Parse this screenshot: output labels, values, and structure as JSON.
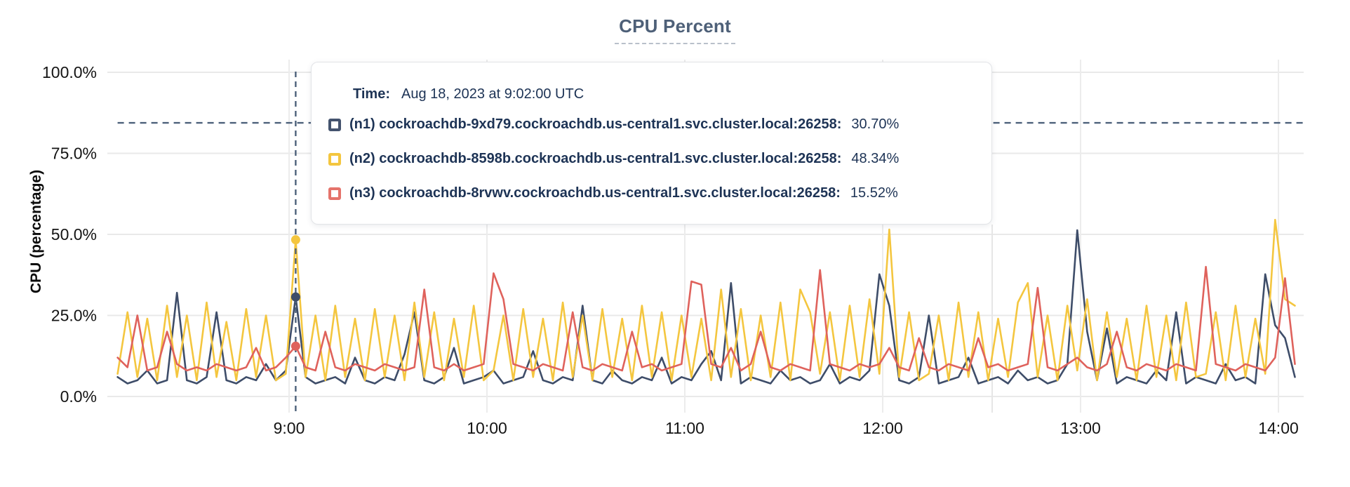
{
  "title": "CPU Percent",
  "tooltip": {
    "time_label": "Time:",
    "time_value": "Aug 18, 2023 at 9:02:00 UTC",
    "rows": [
      {
        "label": "(n1) cockroachdb-9xd79.cockroachdb.us-central1.svc.cluster.local:26258:",
        "value": "30.70%",
        "color": "#44536e"
      },
      {
        "label": "(n2) cockroachdb-8598b.cockroachdb.us-central1.svc.cluster.local:26258:",
        "value": "48.34%",
        "color": "#f4c63f"
      },
      {
        "label": "(n3) cockroachdb-8rvwv.cockroachdb.us-central1.svc.cluster.local:26258:",
        "value": "15.52%",
        "color": "#e5736b"
      }
    ]
  },
  "colors": {
    "grid": "#e9e9e9",
    "crosshair": "#4d617a",
    "axis_text": "#141414",
    "title_text": "#4e6078",
    "tooltip_text": "#1d3355"
  },
  "chart_data": {
    "type": "line",
    "title": "CPU Percent",
    "xlabel": "",
    "ylabel": "CPU (percentage)",
    "ylim": [
      0,
      100
    ],
    "yticks": [
      0,
      25,
      50,
      75,
      100
    ],
    "ytick_labels": [
      "0.0%",
      "25.0%",
      "50.0%",
      "75.0%",
      "100.0%"
    ],
    "xticks_minutes": [
      540,
      600,
      660,
      720,
      780,
      840
    ],
    "xtick_labels": [
      "9:00",
      "10:00",
      "11:00",
      "12:00",
      "13:00",
      "14:00"
    ],
    "x_start_minute": 488,
    "x_step_minutes": 3,
    "grid": true,
    "legend_position": "tooltip",
    "hover": {
      "minute": 542,
      "time": "Aug 18, 2023 at 9:02:00 UTC",
      "cursor_y_percent": 84.4,
      "values": [
        30.7,
        48.34,
        15.52
      ]
    },
    "series": [
      {
        "name": "(n1) cockroachdb-9xd79.cockroachdb.us-central1.svc.cluster.local:26258",
        "color": "#3e4d69",
        "values": [
          6,
          4,
          5,
          8,
          4,
          5,
          32,
          5,
          4,
          6,
          26,
          5,
          4,
          6,
          5,
          10,
          5,
          8,
          30.7,
          6,
          4,
          5,
          6,
          4,
          12,
          5,
          4,
          6,
          5,
          13,
          26,
          5,
          4,
          6,
          15,
          4,
          5,
          6,
          8,
          4,
          5,
          6,
          14,
          5,
          4,
          6,
          5,
          28,
          5,
          4,
          8,
          5,
          4,
          6,
          5,
          12,
          4,
          6,
          5,
          10,
          14,
          5,
          35,
          4,
          6,
          5,
          4,
          8,
          5,
          6,
          4,
          5,
          10,
          4,
          6,
          5,
          8,
          37.7,
          28,
          5,
          4,
          6,
          25,
          4,
          5,
          6,
          12,
          4,
          5,
          6,
          4,
          8,
          5,
          6,
          4,
          5,
          10,
          51.3,
          20,
          5,
          21,
          4,
          6,
          5,
          4,
          8,
          5,
          26,
          4,
          6,
          5,
          4,
          10,
          5,
          6,
          4,
          37.7,
          22,
          18,
          6
        ]
      },
      {
        "name": "(n2) cockroachdb-8598b.cockroachdb.us-central1.svc.cluster.local:26258",
        "color": "#f4c63f",
        "values": [
          7,
          26,
          6,
          24,
          5,
          28,
          6,
          25,
          5,
          29,
          6,
          23,
          5,
          27,
          6,
          25,
          5,
          7,
          48.34,
          6,
          25,
          5,
          28,
          6,
          24,
          5,
          27,
          6,
          25,
          5,
          29,
          6,
          26,
          5,
          24,
          6,
          28,
          5,
          8,
          25,
          5,
          27,
          6,
          24,
          5,
          29,
          6,
          25,
          5,
          27,
          6,
          24,
          5,
          28,
          6,
          26,
          5,
          25,
          6,
          24,
          5,
          33,
          6,
          27,
          5,
          25,
          6,
          29,
          5,
          33,
          26,
          7,
          26,
          5,
          28,
          6,
          30,
          7,
          51.5,
          6,
          26,
          5,
          7,
          25,
          5,
          29,
          6,
          26,
          5,
          24,
          6,
          29,
          35,
          6,
          25,
          5,
          28,
          8,
          30,
          5,
          26,
          6,
          24,
          5,
          28,
          6,
          25,
          5,
          29,
          6,
          7,
          26,
          5,
          28,
          6,
          24,
          7,
          54.5,
          30,
          28
        ]
      },
      {
        "name": "(n3) cockroachdb-8rvwv.cockroachdb.us-central1.svc.cluster.local:26258",
        "color": "#df625c",
        "values": [
          12,
          9,
          25,
          8,
          9,
          20,
          10,
          8,
          9,
          8,
          10,
          9,
          8,
          9,
          15,
          8,
          9,
          12,
          15.52,
          9,
          8,
          20,
          9,
          8,
          10,
          9,
          8,
          10,
          9,
          8,
          9,
          33,
          9,
          8,
          10,
          8,
          9,
          10,
          38,
          30,
          10,
          9,
          8,
          10,
          9,
          8,
          26,
          9,
          8,
          10,
          9,
          8,
          20,
          9,
          10,
          8,
          9,
          10,
          35.5,
          34.5,
          10,
          9,
          15,
          8,
          10,
          20,
          9,
          8,
          10,
          9,
          8,
          39,
          10,
          9,
          8,
          10,
          9,
          10,
          15,
          9,
          8,
          18,
          9,
          8,
          10,
          9,
          8,
          18,
          9,
          10,
          8,
          9,
          10,
          33.5,
          9,
          8,
          10,
          12,
          9,
          8,
          10,
          20,
          9,
          8,
          10,
          9,
          8,
          10,
          9,
          8,
          40,
          10,
          9,
          8,
          10,
          9,
          8,
          12,
          36.5,
          10
        ]
      }
    ]
  }
}
